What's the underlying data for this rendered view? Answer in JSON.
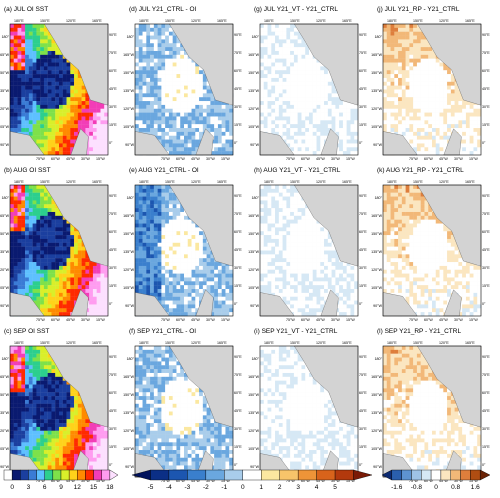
{
  "panels": [
    {
      "id": "a",
      "title": "(a) JUL OI SST",
      "kind": "sst"
    },
    {
      "id": "d",
      "title": "(d) JUL Y21_CTRL - OI",
      "kind": "diff"
    },
    {
      "id": "g",
      "title": "(g) JUL Y21_VT - Y21_CTRL",
      "kind": "small"
    },
    {
      "id": "j",
      "title": "(j) JUL Y21_RP - Y21_CTRL",
      "kind": "small"
    },
    {
      "id": "b",
      "title": "(b) AUG OI SST",
      "kind": "sst"
    },
    {
      "id": "e",
      "title": "(e) AUG Y21_CTRL - OI",
      "kind": "diff"
    },
    {
      "id": "h",
      "title": "(h) AUG Y21_VT - Y21_CTRL",
      "kind": "small"
    },
    {
      "id": "k",
      "title": "(k) AUG Y21_RP - Y21_CTRL",
      "kind": "small"
    },
    {
      "id": "c",
      "title": "(c) SEP OI SST",
      "kind": "sst"
    },
    {
      "id": "f",
      "title": "(f) SEP Y21_CTRL - OI",
      "kind": "diff"
    },
    {
      "id": "i",
      "title": "(i) SEP Y21_VT - Y21_CTRL",
      "kind": "small"
    },
    {
      "id": "l",
      "title": "(l) SEP Y21_RP - Y21_CTRL",
      "kind": "small"
    }
  ],
  "ticks": {
    "top": [
      "180°E",
      "150°E",
      "120°E",
      "165°E"
    ],
    "left": [
      "180°",
      "165°W",
      "150°W",
      "135°W",
      "120°W",
      "105°W",
      "90°W"
    ],
    "right": [
      "90°E",
      "75°E",
      "60°E",
      "45°E",
      "30°E",
      "15°E",
      "0°"
    ],
    "bottom": [
      "75°W",
      "60°W",
      "45°W",
      "30°W",
      "15°W"
    ]
  },
  "colorbars": [
    {
      "name": "sst",
      "labels": [
        "0",
        "3",
        "6",
        "9",
        "12",
        "15",
        "18"
      ],
      "colors": [
        "#ffffff",
        "#0a1a70",
        "#1b3f9f",
        "#3a7bd5",
        "#5ec0ff",
        "#2ccf8e",
        "#7ee14a",
        "#d9ef2a",
        "#ffd21a",
        "#ff8a00",
        "#ff2a00",
        "#f23db7",
        "#ff9cf0",
        "#fde0ff"
      ]
    },
    {
      "name": "diff",
      "labels": [
        "-5",
        "-4",
        "-3",
        "-2",
        "-1",
        "0",
        "1",
        "2",
        "3",
        "4",
        "5"
      ],
      "colors": [
        "#00125c",
        "#0b2f86",
        "#1c56b0",
        "#3a7fcd",
        "#6aa7df",
        "#a9cdeb",
        "#ffffff",
        "#fbe8a0",
        "#f7c46a",
        "#ee9438",
        "#d8631b",
        "#b3390d",
        "#7a1a06"
      ]
    },
    {
      "name": "small",
      "labels": [
        "-1.6",
        "-0.8",
        "0",
        "0.8",
        "1.6"
      ],
      "colors": [
        "#0c2a72",
        "#2a5fae",
        "#5d93d1",
        "#9ec3e6",
        "#d6e8f5",
        "#ffffff",
        "#fbe6c0",
        "#f2b878",
        "#de7e3c",
        "#b04d12",
        "#6a2306"
      ]
    }
  ]
}
